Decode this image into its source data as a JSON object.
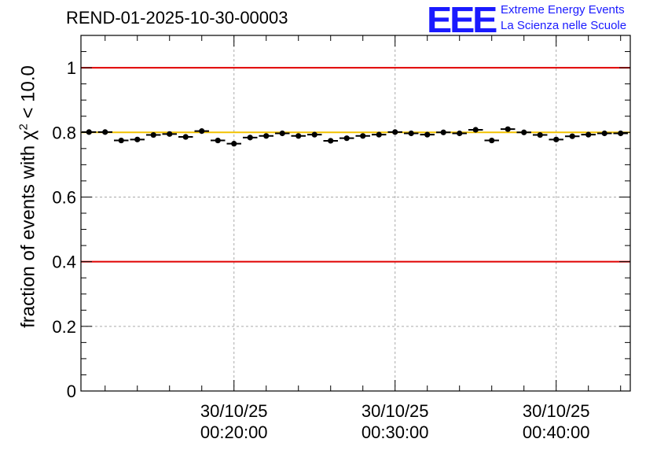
{
  "title": "REND-01-2025-10-30-00003",
  "logo": {
    "mark": "EEE",
    "line1": "Extreme Energy Events",
    "line2": "La Scienza nelle Scuole"
  },
  "chart_data": {
    "type": "scatter",
    "title": "REND-01-2025-10-30-00003",
    "ylabel_prefix": "fraction of events with χ",
    "ylabel_sup": "2",
    "ylabel_suffix": " < 10.0",
    "xlabel": "",
    "x_unit": "minutes after 30/10/25 00:00:00",
    "xlim": [
      10.5,
      44.6
    ],
    "ylim": [
      0,
      1.1
    ],
    "yticks": [
      0,
      0.2,
      0.4,
      0.6,
      0.8,
      1
    ],
    "ytick_labels": [
      "0",
      "0.2",
      "0.4",
      "0.6",
      "0.8",
      "1"
    ],
    "xticks": [
      {
        "x": 20,
        "date": "30/10/25",
        "time": "00:20:00"
      },
      {
        "x": 30,
        "date": "30/10/25",
        "time": "00:30:00"
      },
      {
        "x": 40,
        "date": "30/10/25",
        "time": "00:40:00"
      }
    ],
    "reference_lines": [
      {
        "y": 1.0,
        "color": "#e00000"
      },
      {
        "y": 0.4,
        "color": "#e00000"
      },
      {
        "y": 0.8,
        "color": "#f2c200"
      }
    ],
    "bin_width": 1,
    "series": [
      {
        "name": "fraction",
        "x": [
          11,
          12,
          13,
          14,
          15,
          16,
          17,
          18,
          19,
          20,
          21,
          22,
          23,
          24,
          25,
          26,
          27,
          28,
          29,
          30,
          31,
          32,
          33,
          34,
          35,
          36,
          37,
          38,
          39,
          40,
          41,
          42,
          43,
          44
        ],
        "y": [
          0.801,
          0.801,
          0.775,
          0.778,
          0.792,
          0.795,
          0.786,
          0.804,
          0.775,
          0.765,
          0.784,
          0.789,
          0.797,
          0.789,
          0.793,
          0.774,
          0.782,
          0.789,
          0.793,
          0.801,
          0.797,
          0.793,
          0.8,
          0.797,
          0.808,
          0.775,
          0.81,
          0.8,
          0.792,
          0.778,
          0.788,
          0.793,
          0.797,
          0.797
        ]
      }
    ]
  }
}
